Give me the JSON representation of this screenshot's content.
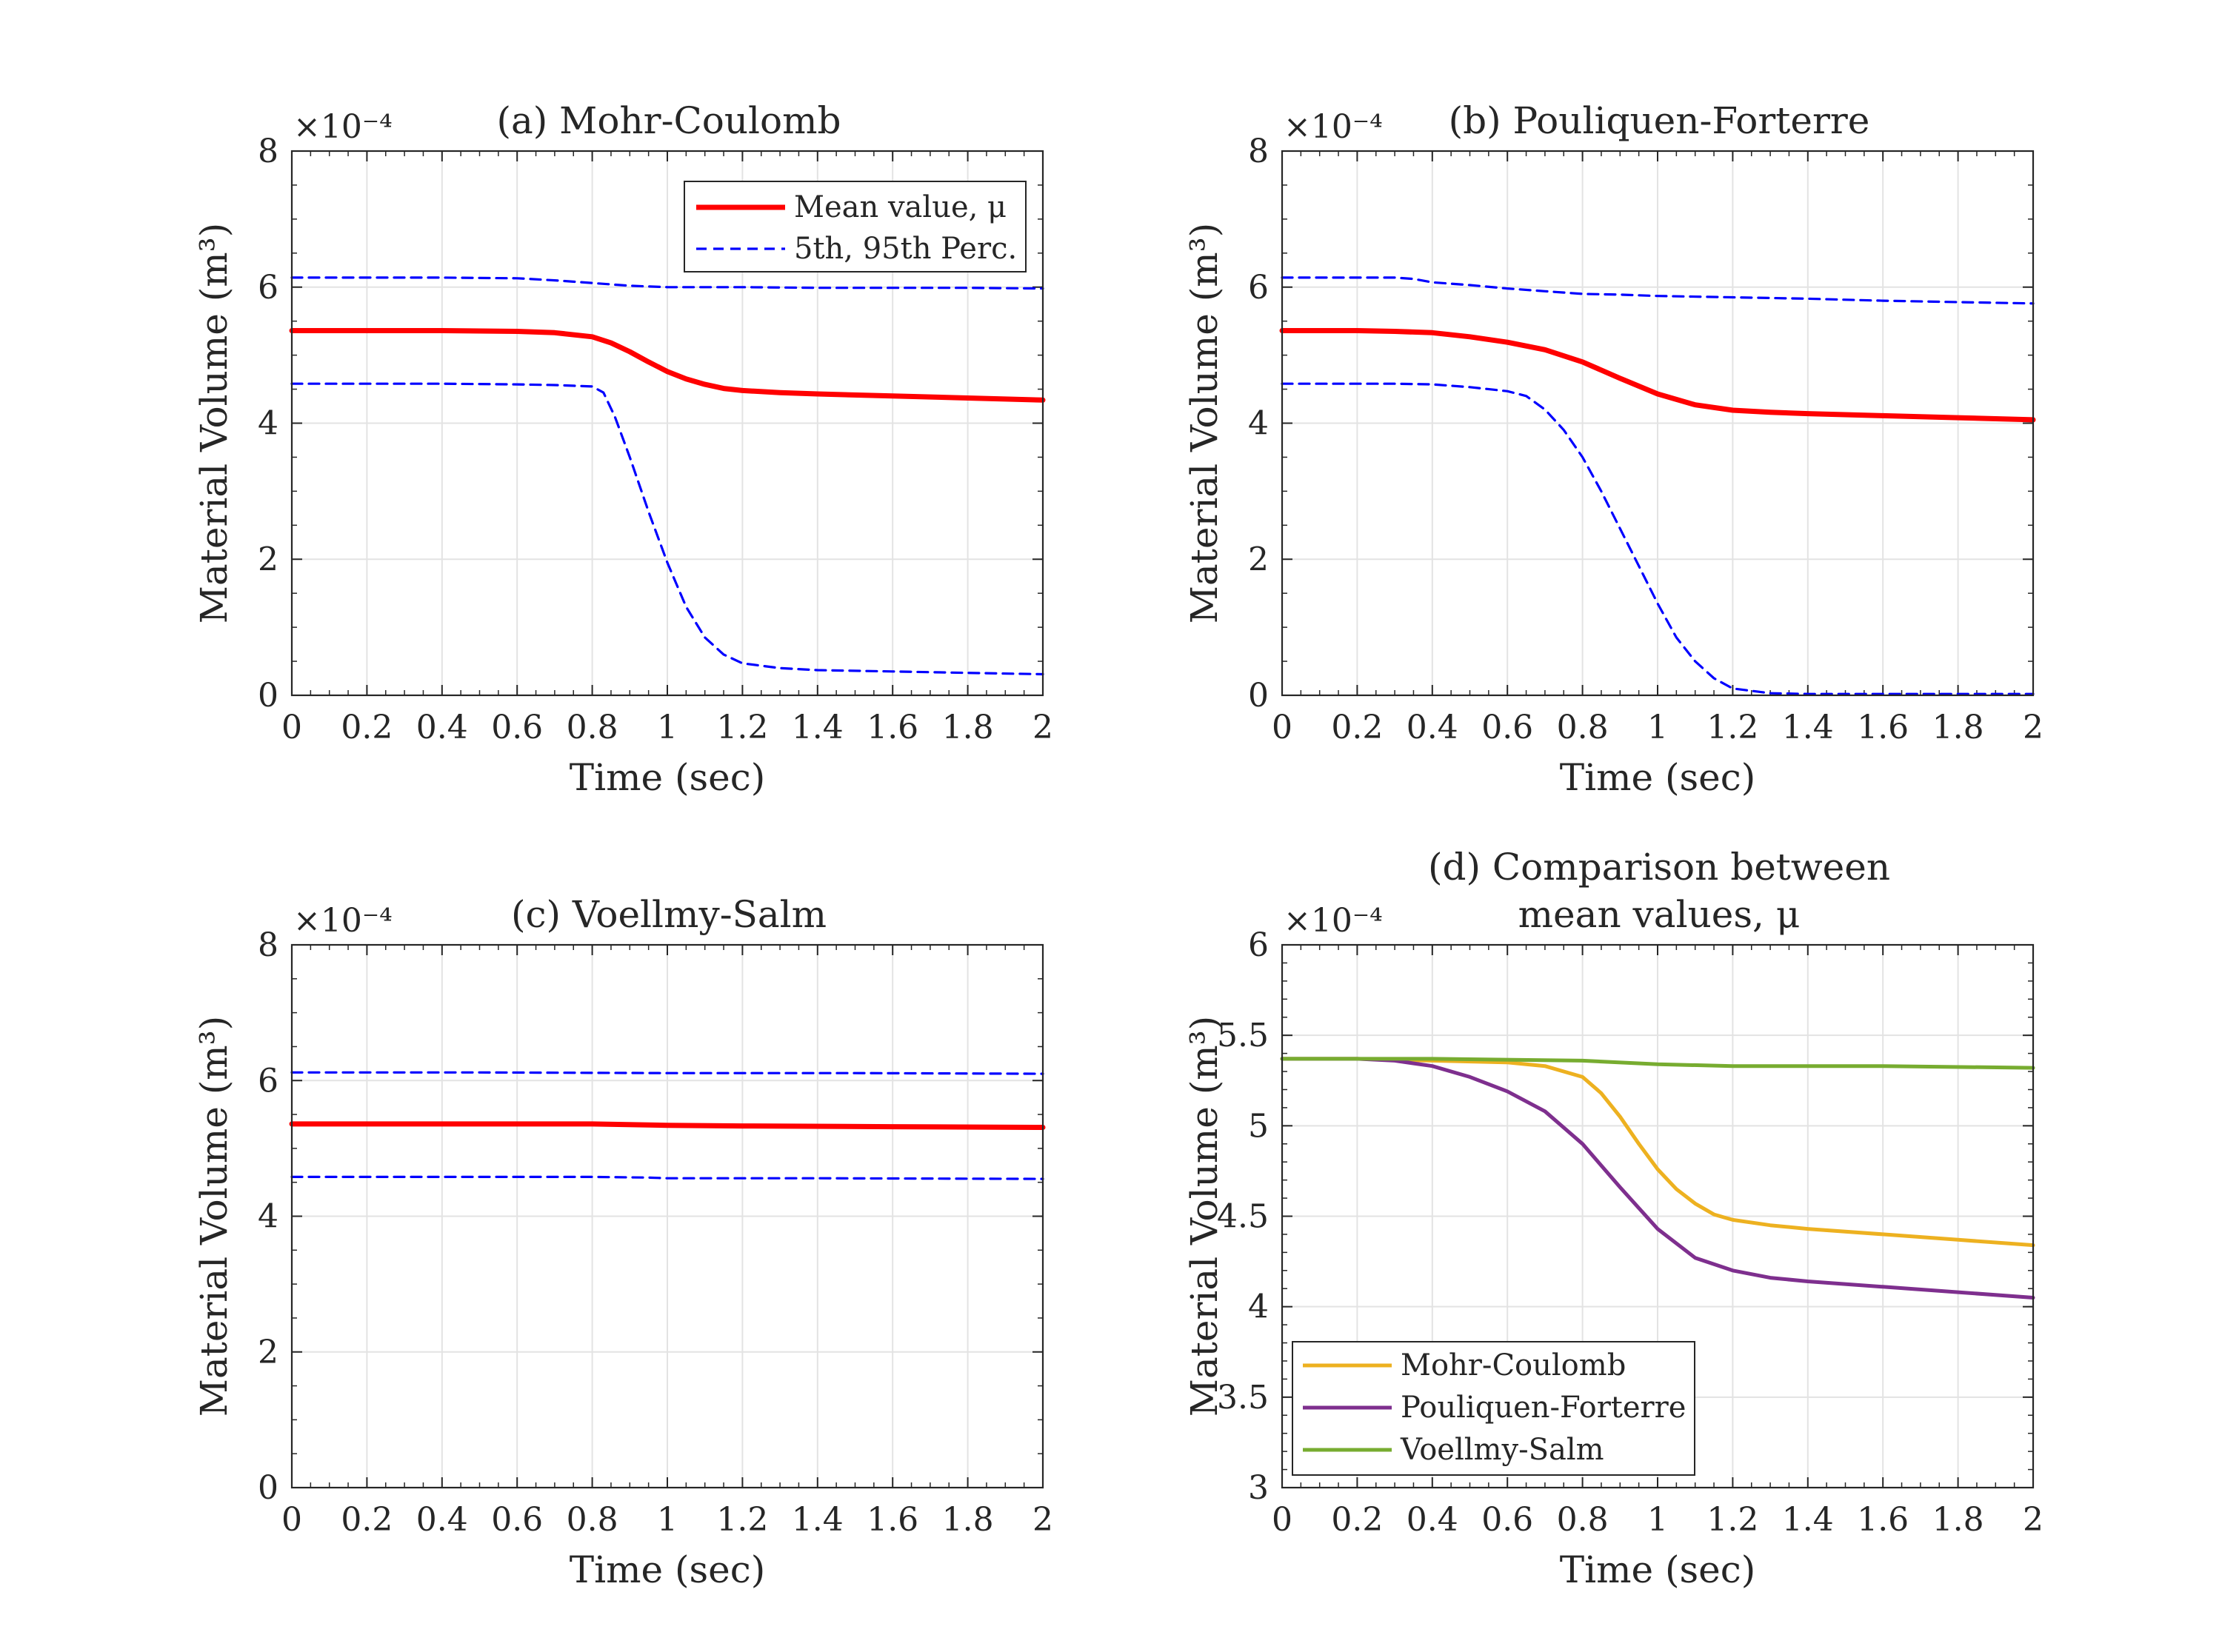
{
  "chart_data": [
    {
      "type": "line",
      "panel": "a",
      "title": [
        "(a) Mohr-Coulomb"
      ],
      "xlabel": "Time (sec)",
      "ylabel": "Material Volume (m³)",
      "y_multiplier": "×10⁻⁴",
      "xlim": [
        0,
        2
      ],
      "ylim": [
        0,
        8
      ],
      "x_ticks": [
        "0",
        "0.2",
        "0.4",
        "0.6",
        "0.8",
        "1",
        "1.2",
        "1.4",
        "1.6",
        "1.8",
        "2"
      ],
      "y_ticks": [
        "0",
        "2",
        "4",
        "6",
        "8"
      ],
      "grid": true,
      "legend_position": "top-right",
      "series": [
        {
          "name": "Mean value, μ",
          "color": "#ff0000",
          "style": "solid",
          "x": [
            0,
            0.2,
            0.4,
            0.6,
            0.7,
            0.8,
            0.85,
            0.9,
            0.95,
            1.0,
            1.05,
            1.1,
            1.15,
            1.2,
            1.3,
            1.4,
            1.6,
            1.8,
            2.0
          ],
          "y": [
            5.36,
            5.36,
            5.36,
            5.35,
            5.33,
            5.27,
            5.18,
            5.05,
            4.9,
            4.76,
            4.65,
            4.57,
            4.51,
            4.48,
            4.45,
            4.43,
            4.4,
            4.37,
            4.34
          ]
        },
        {
          "name": "5th, 95th Perc.",
          "color": "#0000ff",
          "style": "dashed",
          "x": [
            0,
            0.2,
            0.4,
            0.6,
            0.7,
            0.8,
            0.9,
            1.0,
            1.2,
            1.4,
            1.6,
            1.8,
            2.0
          ],
          "y": [
            6.14,
            6.14,
            6.14,
            6.13,
            6.1,
            6.06,
            6.02,
            6.0,
            6.0,
            5.99,
            5.99,
            5.99,
            5.98
          ]
        },
        {
          "name": "",
          "color": "#0000ff",
          "style": "dashed",
          "x": [
            0,
            0.2,
            0.4,
            0.6,
            0.7,
            0.8,
            0.83,
            0.86,
            0.9,
            0.95,
            1.0,
            1.05,
            1.1,
            1.15,
            1.2,
            1.3,
            1.4,
            1.6,
            1.8,
            2.0
          ],
          "y": [
            4.58,
            4.58,
            4.58,
            4.57,
            4.56,
            4.54,
            4.45,
            4.1,
            3.5,
            2.7,
            1.95,
            1.3,
            0.85,
            0.6,
            0.47,
            0.4,
            0.37,
            0.35,
            0.33,
            0.31
          ]
        }
      ]
    },
    {
      "type": "line",
      "panel": "b",
      "title": [
        "(b) Pouliquen-Forterre"
      ],
      "xlabel": "Time (sec)",
      "ylabel": "Material Volume (m³)",
      "y_multiplier": "×10⁻⁴",
      "xlim": [
        0,
        2
      ],
      "ylim": [
        0,
        8
      ],
      "x_ticks": [
        "0",
        "0.2",
        "0.4",
        "0.6",
        "0.8",
        "1",
        "1.2",
        "1.4",
        "1.6",
        "1.8",
        "2"
      ],
      "y_ticks": [
        "0",
        "2",
        "4",
        "6",
        "8"
      ],
      "grid": true,
      "series": [
        {
          "name": "Mean value, μ",
          "color": "#ff0000",
          "style": "solid",
          "x": [
            0,
            0.2,
            0.3,
            0.4,
            0.5,
            0.6,
            0.7,
            0.8,
            0.9,
            1.0,
            1.1,
            1.2,
            1.3,
            1.4,
            1.6,
            1.8,
            2.0
          ],
          "y": [
            5.36,
            5.36,
            5.35,
            5.33,
            5.27,
            5.19,
            5.08,
            4.9,
            4.66,
            4.43,
            4.27,
            4.19,
            4.16,
            4.14,
            4.11,
            4.08,
            4.05
          ]
        },
        {
          "name": "5th, 95th Perc.",
          "color": "#0000ff",
          "style": "dashed",
          "x": [
            0,
            0.2,
            0.3,
            0.35,
            0.4,
            0.5,
            0.6,
            0.7,
            0.8,
            0.9,
            1.0,
            1.2,
            1.4,
            1.6,
            1.8,
            2.0
          ],
          "y": [
            6.14,
            6.14,
            6.14,
            6.12,
            6.07,
            6.03,
            5.98,
            5.94,
            5.9,
            5.89,
            5.87,
            5.85,
            5.83,
            5.8,
            5.78,
            5.76
          ]
        },
        {
          "name": "",
          "color": "#0000ff",
          "style": "dashed",
          "x": [
            0,
            0.2,
            0.3,
            0.4,
            0.5,
            0.6,
            0.65,
            0.7,
            0.75,
            0.8,
            0.85,
            0.9,
            0.95,
            1.0,
            1.05,
            1.1,
            1.15,
            1.2,
            1.3,
            1.4,
            1.6,
            1.8,
            2.0
          ],
          "y": [
            4.58,
            4.58,
            4.58,
            4.57,
            4.53,
            4.47,
            4.4,
            4.2,
            3.9,
            3.5,
            3.0,
            2.45,
            1.9,
            1.35,
            0.85,
            0.5,
            0.25,
            0.1,
            0.03,
            0.02,
            0.02,
            0.02,
            0.02
          ]
        }
      ]
    },
    {
      "type": "line",
      "panel": "c",
      "title": [
        "(c) Voellmy-Salm"
      ],
      "xlabel": "Time (sec)",
      "ylabel": "Material Volume (m³)",
      "y_multiplier": "×10⁻⁴",
      "xlim": [
        0,
        2
      ],
      "ylim": [
        0,
        8
      ],
      "x_ticks": [
        "0",
        "0.2",
        "0.4",
        "0.6",
        "0.8",
        "1",
        "1.2",
        "1.4",
        "1.6",
        "1.8",
        "2"
      ],
      "y_ticks": [
        "0",
        "2",
        "4",
        "6",
        "8"
      ],
      "grid": true,
      "series": [
        {
          "name": "Mean value, μ",
          "color": "#ff0000",
          "style": "solid",
          "x": [
            0,
            0.4,
            0.8,
            1.0,
            1.2,
            1.6,
            2.0
          ],
          "y": [
            5.36,
            5.36,
            5.36,
            5.34,
            5.33,
            5.32,
            5.31
          ]
        },
        {
          "name": "5th, 95th Perc.",
          "color": "#0000ff",
          "style": "dashed",
          "x": [
            0,
            0.5,
            1.0,
            1.5,
            2.0
          ],
          "y": [
            6.12,
            6.12,
            6.11,
            6.11,
            6.1
          ]
        },
        {
          "name": "",
          "color": "#0000ff",
          "style": "dashed",
          "x": [
            0,
            0.4,
            0.8,
            0.95,
            1.0,
            1.4,
            2.0
          ],
          "y": [
            4.58,
            4.58,
            4.58,
            4.57,
            4.56,
            4.56,
            4.55
          ]
        }
      ]
    },
    {
      "type": "line",
      "panel": "d",
      "title": [
        "(d) Comparison between",
        "mean values, μ"
      ],
      "xlabel": "Time (sec)",
      "ylabel": "Material Volume (m³)",
      "y_multiplier": "×10⁻⁴",
      "xlim": [
        0,
        2
      ],
      "ylim": [
        3,
        6
      ],
      "x_ticks": [
        "0",
        "0.2",
        "0.4",
        "0.6",
        "0.8",
        "1",
        "1.2",
        "1.4",
        "1.6",
        "1.8",
        "2"
      ],
      "y_ticks": [
        "3",
        "3.5",
        "4",
        "4.5",
        "5",
        "5.5",
        "6"
      ],
      "grid": true,
      "legend_position": "bottom-left",
      "series": [
        {
          "name": "Mohr-Coulomb",
          "color": "#edb120",
          "style": "solid",
          "x": [
            0,
            0.2,
            0.4,
            0.6,
            0.7,
            0.8,
            0.85,
            0.9,
            0.95,
            1.0,
            1.05,
            1.1,
            1.15,
            1.2,
            1.3,
            1.4,
            1.6,
            1.8,
            2.0
          ],
          "y": [
            5.37,
            5.37,
            5.36,
            5.35,
            5.33,
            5.27,
            5.18,
            5.05,
            4.9,
            4.76,
            4.65,
            4.57,
            4.51,
            4.48,
            4.45,
            4.43,
            4.4,
            4.37,
            4.34
          ]
        },
        {
          "name": "Pouliquen-Forterre",
          "color": "#7e2f8e",
          "style": "solid",
          "x": [
            0,
            0.2,
            0.3,
            0.4,
            0.5,
            0.6,
            0.7,
            0.8,
            0.9,
            1.0,
            1.1,
            1.2,
            1.3,
            1.4,
            1.6,
            1.8,
            2.0
          ],
          "y": [
            5.37,
            5.37,
            5.36,
            5.33,
            5.27,
            5.19,
            5.08,
            4.9,
            4.66,
            4.43,
            4.27,
            4.2,
            4.16,
            4.14,
            4.11,
            4.08,
            4.05
          ]
        },
        {
          "name": "Voellmy-Salm",
          "color": "#77ac30",
          "style": "solid",
          "x": [
            0,
            0.4,
            0.8,
            1.0,
            1.2,
            1.6,
            2.0
          ],
          "y": [
            5.37,
            5.37,
            5.36,
            5.34,
            5.33,
            5.33,
            5.32
          ]
        }
      ]
    }
  ]
}
